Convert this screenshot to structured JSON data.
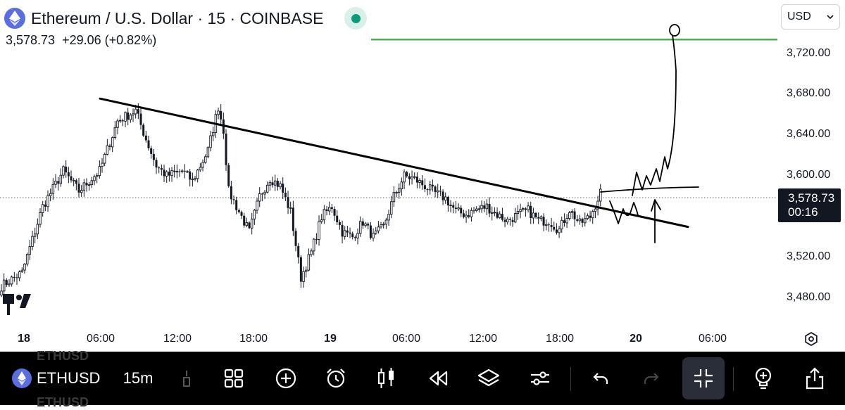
{
  "header": {
    "title": "Ethereum / U.S. Dollar · 15 · COINBASE",
    "price": "3,578.73",
    "change": "+29.06 (+0.82%)"
  },
  "currency_selector": {
    "value": "USD"
  },
  "price_tag": {
    "price": "3,578.73",
    "countdown": "00:16"
  },
  "toolbar": {
    "symbol": "ETHUSD",
    "interval": "15m",
    "ghost_symbol": "ETHUSD"
  },
  "colors": {
    "up": "#131722",
    "down": "#131722",
    "alert_line": "#4caf50",
    "status": "#0a9b7c",
    "toolbar_bg": "#000000"
  },
  "icons": [
    "ethereum-icon",
    "chevron-down-icon",
    "settings-icon",
    "indicators-icon",
    "add-icon",
    "alert-clock-icon",
    "candles-icon",
    "replay-icon",
    "layers-icon",
    "sliders-icon",
    "undo-icon",
    "redo-icon",
    "collapse-icon",
    "ideas-icon",
    "share-icon"
  ],
  "chart_data": {
    "type": "candlestick",
    "y_ticks": [
      "3,720.00",
      "3,680.00",
      "3,640.00",
      "3,600.00",
      "3,560.00",
      "3,520.00",
      "3,480.00"
    ],
    "y_tick_values": [
      3720,
      3680,
      3640,
      3600,
      3560,
      3520,
      3480
    ],
    "x_ticks": [
      {
        "label": "18",
        "bold": true
      },
      {
        "label": "06:00",
        "bold": false
      },
      {
        "label": "12:00",
        "bold": false
      },
      {
        "label": "18:00",
        "bold": false
      },
      {
        "label": "19",
        "bold": true
      },
      {
        "label": "06:00",
        "bold": false
      },
      {
        "label": "12:00",
        "bold": false
      },
      {
        "label": "18:00",
        "bold": false
      },
      {
        "label": "20",
        "bold": true
      },
      {
        "label": "06:00",
        "bold": false
      }
    ],
    "current_price": 3578.73,
    "alert_level": 3734,
    "trendline": {
      "start": [
        "18 05:00",
        3676
      ],
      "end": [
        "20 03:00",
        3550
      ]
    },
    "anchors": [
      [
        0,
        3492
      ],
      [
        8,
        3505
      ],
      [
        16,
        3570
      ],
      [
        24,
        3605
      ],
      [
        30,
        3585
      ],
      [
        38,
        3605
      ],
      [
        45,
        3654
      ],
      [
        52,
        3664
      ],
      [
        56,
        3636
      ],
      [
        60,
        3610
      ],
      [
        64,
        3600
      ],
      [
        70,
        3605
      ],
      [
        74,
        3595
      ],
      [
        80,
        3625
      ],
      [
        84,
        3668
      ],
      [
        86,
        3645
      ],
      [
        88,
        3585
      ],
      [
        92,
        3565
      ],
      [
        96,
        3545
      ],
      [
        100,
        3580
      ],
      [
        104,
        3598
      ],
      [
        108,
        3590
      ],
      [
        112,
        3565
      ],
      [
        116,
        3500
      ],
      [
        120,
        3525
      ],
      [
        124,
        3560
      ],
      [
        128,
        3570
      ],
      [
        132,
        3545
      ],
      [
        136,
        3540
      ],
      [
        140,
        3555
      ],
      [
        144,
        3540
      ],
      [
        148,
        3550
      ],
      [
        152,
        3580
      ],
      [
        156,
        3600
      ],
      [
        160,
        3597
      ],
      [
        164,
        3590
      ],
      [
        168,
        3583
      ],
      [
        172,
        3578
      ],
      [
        176,
        3565
      ],
      [
        180,
        3562
      ],
      [
        184,
        3567
      ],
      [
        188,
        3570
      ],
      [
        192,
        3562
      ],
      [
        196,
        3556
      ],
      [
        200,
        3562
      ],
      [
        204,
        3566
      ],
      [
        208,
        3556
      ],
      [
        212,
        3556
      ],
      [
        216,
        3547
      ],
      [
        220,
        3567
      ],
      [
        224,
        3553
      ],
      [
        228,
        3560
      ],
      [
        232,
        3584
      ]
    ]
  }
}
